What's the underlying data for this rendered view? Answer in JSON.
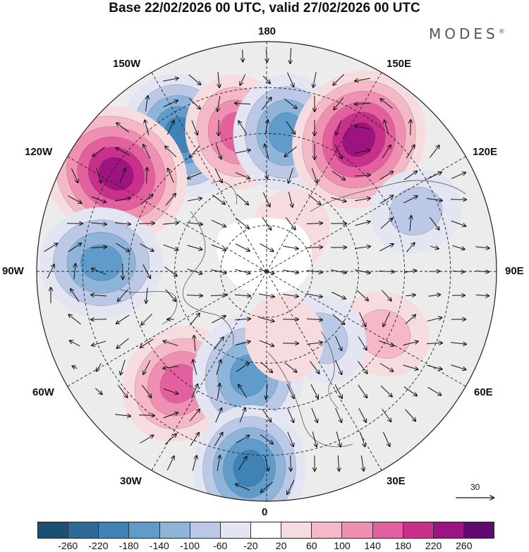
{
  "header": {
    "title": "Base 22/02/2026 00 UTC, valid 27/02/2026 00 UTC",
    "brand": "MODES",
    "brand_mark": "®"
  },
  "map": {
    "projection": "north-polar-stereographic",
    "longitude_labels": {
      "top": "180",
      "bottom": "0",
      "left": "90W",
      "right": "90E",
      "upper_left_1": "150W",
      "upper_left_2": "120W",
      "upper_right_1": "150E",
      "upper_right_2": "120E",
      "lower_left_1": "60W",
      "lower_left_2": "30W",
      "lower_right_1": "60E",
      "lower_right_2": "30E"
    },
    "reference_vector": "30",
    "colors": {
      "background": "#ececec",
      "grid": "#222222",
      "coast": "#555555"
    },
    "anomalies": [
      {
        "lat_frac": 0.7,
        "lon_deg": -148,
        "value": -180
      },
      {
        "lat_frac": 0.62,
        "lon_deg": -168,
        "value": 140
      },
      {
        "lat_frac": 0.61,
        "lon_deg": 172,
        "value": -150
      },
      {
        "lat_frac": 0.7,
        "lon_deg": 145,
        "value": 240
      },
      {
        "lat_frac": 0.78,
        "lon_deg": -123,
        "value": 250
      },
      {
        "lat_frac": 0.72,
        "lon_deg": -93,
        "value": -170
      },
      {
        "lat_frac": 0.7,
        "lon_deg": 112,
        "value": -60
      },
      {
        "lat_frac": 0.62,
        "lon_deg": -38,
        "value": 160
      },
      {
        "lat_frac": 0.46,
        "lon_deg": -10,
        "value": -170
      },
      {
        "lat_frac": 0.86,
        "lon_deg": -5,
        "value": -180
      },
      {
        "lat_frac": 0.58,
        "lon_deg": 62,
        "value": 60
      },
      {
        "lat_frac": 0.38,
        "lon_deg": 40,
        "value": -60
      },
      {
        "lat_frac": 0.3,
        "lon_deg": 15,
        "value": 40
      },
      {
        "lat_frac": 0.2,
        "lon_deg": 150,
        "value": 40
      }
    ]
  },
  "colorbar": {
    "colors": [
      "#1d4f73",
      "#2d6a96",
      "#3f82b6",
      "#5f9bcb",
      "#8eb4da",
      "#bcc9e6",
      "#e3e5f2",
      "#ffffff",
      "#f7dcdf",
      "#f5b8c6",
      "#ef8fb1",
      "#e3609e",
      "#c9308c",
      "#9d1480",
      "#5e0a6e"
    ],
    "labels": [
      "-260",
      "-220",
      "-180",
      "-140",
      "-100",
      "-60",
      "-20",
      "20",
      "60",
      "100",
      "140",
      "180",
      "220",
      "260"
    ]
  }
}
